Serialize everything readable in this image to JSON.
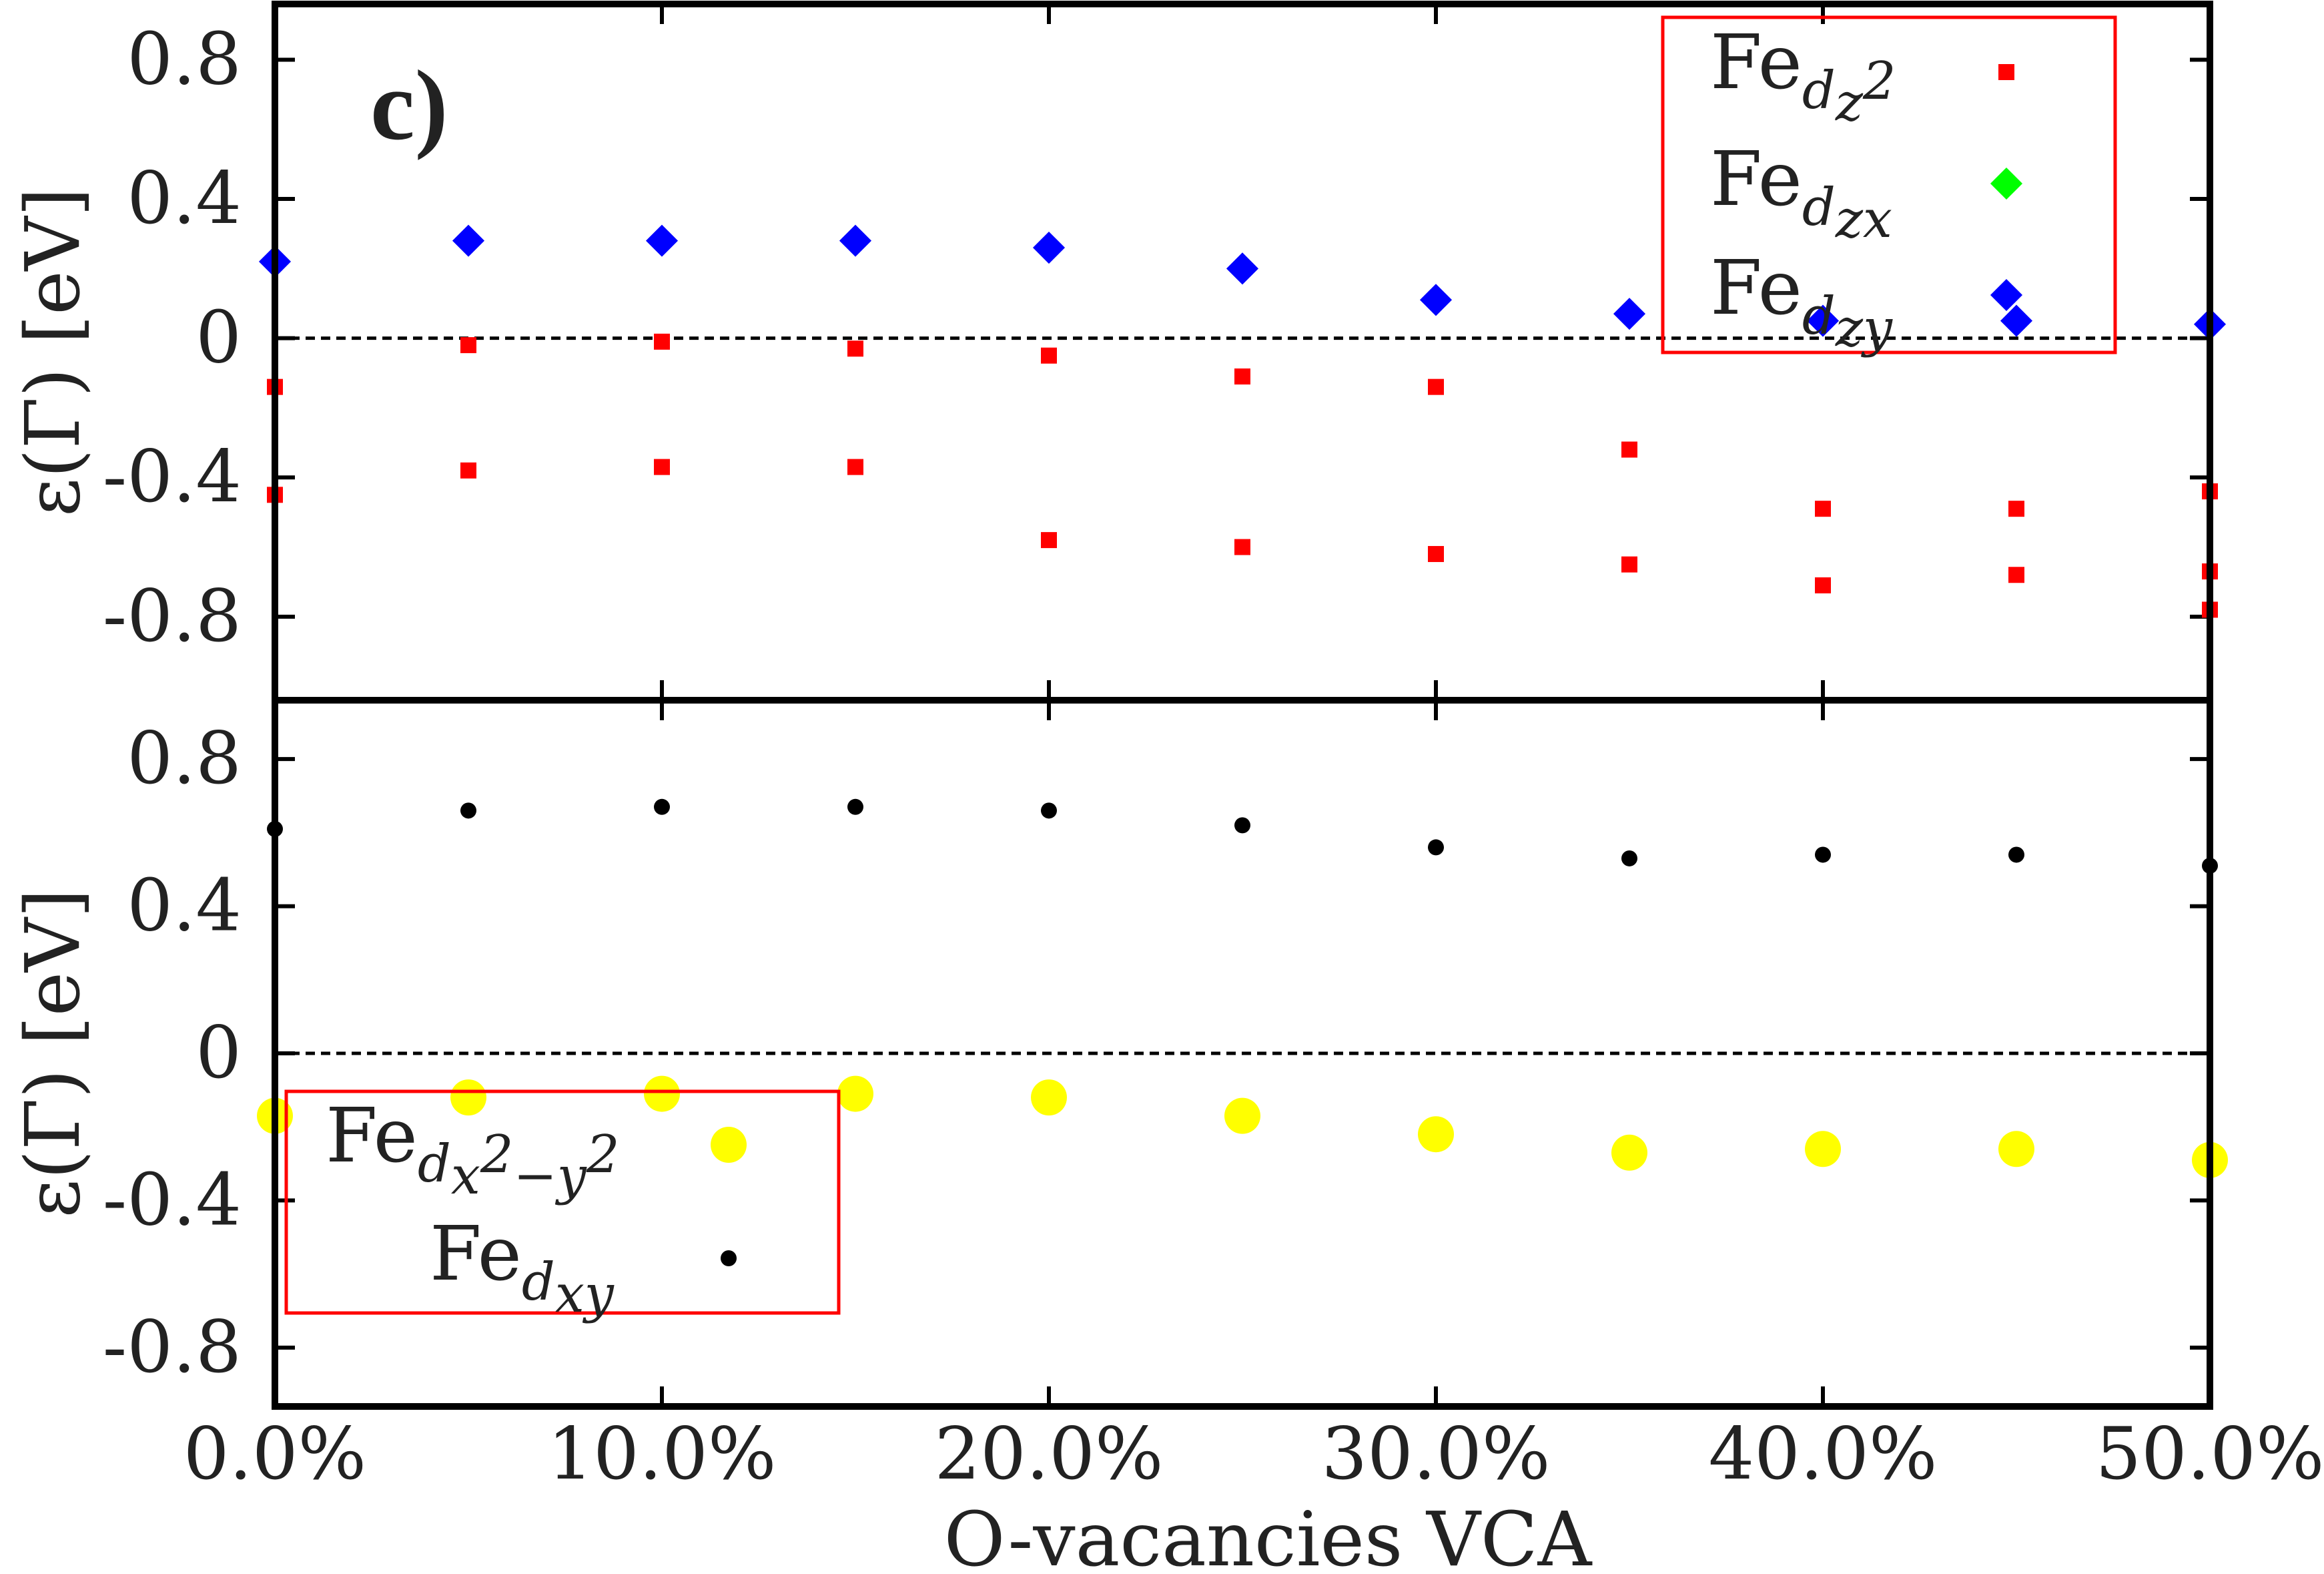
{
  "panel_label": "c)",
  "chart_data": [
    {
      "type": "scatter",
      "panel": "top",
      "ylabel": "ε(Γ) [eV]",
      "ylim": [
        -1.04,
        0.96
      ],
      "yticks": [
        "0.8",
        "0.4",
        "0",
        "-0.4",
        "-0.8"
      ],
      "ytick_values": [
        0.8,
        0.4,
        0,
        -0.4,
        -0.8
      ],
      "xlim": [
        0,
        50
      ],
      "zero_line": true,
      "legend_position": "top-right",
      "legend": [
        {
          "base": "Fe",
          "sub": "d",
          "subsub": "z",
          "sup": "2",
          "color": "#ff0000",
          "marker": "square"
        },
        {
          "base": "Fe",
          "sub": "d",
          "subsub": "zx",
          "sup": "",
          "color": "#00ff00",
          "marker": "diamond"
        },
        {
          "base": "Fe",
          "sub": "d",
          "subsub": "zy",
          "sup": "",
          "color": "#0000ff",
          "marker": "diamond"
        }
      ],
      "series": [
        {
          "name": "Fe d_z2 (upper)",
          "color": "#ff0000",
          "marker": "square",
          "x": [
            0,
            5,
            10,
            15,
            20,
            25,
            30,
            35,
            40,
            45,
            50
          ],
          "y": [
            -0.14,
            -0.02,
            -0.01,
            -0.03,
            -0.05,
            -0.11,
            -0.14,
            -0.32,
            -0.49,
            -0.49,
            -0.44
          ]
        },
        {
          "name": "Fe d_z2 (lower)",
          "color": "#ff0000",
          "marker": "square",
          "x": [
            0,
            5,
            10,
            15,
            20,
            25,
            30,
            35,
            40,
            45,
            50,
            50
          ],
          "y": [
            -0.45,
            -0.38,
            -0.37,
            -0.37,
            -0.58,
            -0.6,
            -0.62,
            -0.65,
            -0.71,
            -0.68,
            -0.67,
            -0.78
          ]
        },
        {
          "name": "Fe d_zy",
          "color": "#0000ff",
          "marker": "diamond",
          "x": [
            0,
            5,
            10,
            15,
            20,
            25,
            30,
            35,
            40,
            45,
            50
          ],
          "y": [
            0.22,
            0.28,
            0.28,
            0.28,
            0.26,
            0.2,
            0.11,
            0.07,
            0.05,
            0.05,
            0.04
          ]
        }
      ]
    },
    {
      "type": "scatter",
      "panel": "bottom",
      "ylabel": "ε(Γ) [eV]",
      "xlabel": "O-vacancies VCA",
      "ylim": [
        -0.96,
        0.96
      ],
      "yticks": [
        "0.8",
        "0.4",
        "0",
        "-0.4",
        "-0.8"
      ],
      "ytick_values": [
        0.8,
        0.4,
        0,
        -0.4,
        -0.8
      ],
      "xlim": [
        0,
        50
      ],
      "xticks": [
        "0.0%",
        "10.0%",
        "20.0%",
        "30.0%",
        "40.0%",
        "50.0%"
      ],
      "xtick_values": [
        0,
        10,
        20,
        30,
        40,
        50
      ],
      "zero_line": true,
      "legend_position": "bottom-left",
      "legend": [
        {
          "base": "Fe",
          "sub": "d",
          "subsub": "x",
          "sup": "2",
          "subsub2": "−y",
          "sup2": "2",
          "color": "#ffff00",
          "marker": "circle-large"
        },
        {
          "base": "Fe",
          "sub": "d",
          "subsub": "xy",
          "sup": "",
          "color": "#000000",
          "marker": "circle-small"
        }
      ],
      "series": [
        {
          "name": "Fe d_x2-y2",
          "color": "#ffff00",
          "marker": "circle-large",
          "x": [
            0,
            5,
            10,
            15,
            20,
            25,
            30,
            35,
            40,
            45,
            50
          ],
          "y": [
            -0.17,
            -0.12,
            -0.11,
            -0.11,
            -0.12,
            -0.17,
            -0.22,
            -0.27,
            -0.26,
            -0.26,
            -0.29
          ]
        },
        {
          "name": "Fe d_xy",
          "color": "#000000",
          "marker": "circle-small",
          "x": [
            0,
            5,
            10,
            15,
            20,
            25,
            30,
            35,
            40,
            45,
            50
          ],
          "y": [
            0.61,
            0.66,
            0.67,
            0.67,
            0.66,
            0.62,
            0.56,
            0.53,
            0.54,
            0.54,
            0.51
          ]
        }
      ]
    }
  ]
}
